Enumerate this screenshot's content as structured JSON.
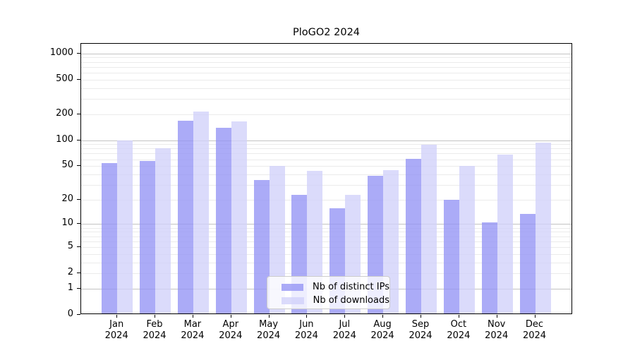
{
  "chart_data": {
    "type": "bar",
    "title": "PloGO2 2024",
    "xlabel": "",
    "ylabel": "",
    "categories": [
      "Jan",
      "Feb",
      "Mar",
      "Apr",
      "May",
      "Jun",
      "Jul",
      "Aug",
      "Sep",
      "Oct",
      "Nov",
      "Dec"
    ],
    "category_year": "2024",
    "series": [
      {
        "name": "Nb of distinct IPs",
        "color": "rgba(147,147,245,0.78)",
        "values": [
          52,
          55,
          162,
          135,
          33,
          22,
          15,
          37,
          59,
          19,
          10,
          13
        ]
      },
      {
        "name": "Nb of downloads",
        "color": "rgba(209,209,250,0.78)",
        "values": [
          95,
          77,
          205,
          160,
          48,
          42,
          22,
          43,
          86,
          48,
          66,
          90
        ]
      }
    ],
    "yticks": [
      0,
      1,
      2,
      5,
      10,
      20,
      50,
      100,
      200,
      500,
      1000
    ],
    "y_scale": "log10(value+1)",
    "ylim": [
      0,
      1290
    ],
    "grid": "horizontal; major lines at 1,10,100,1000; minor at 2-9 multiples of each decade",
    "legend_position": "inside bottom-center",
    "axis_color": "#000000",
    "major_grid_color": "#c3c3c3",
    "minor_grid_color": "#ebebeb",
    "background_color": "#ffffff"
  }
}
